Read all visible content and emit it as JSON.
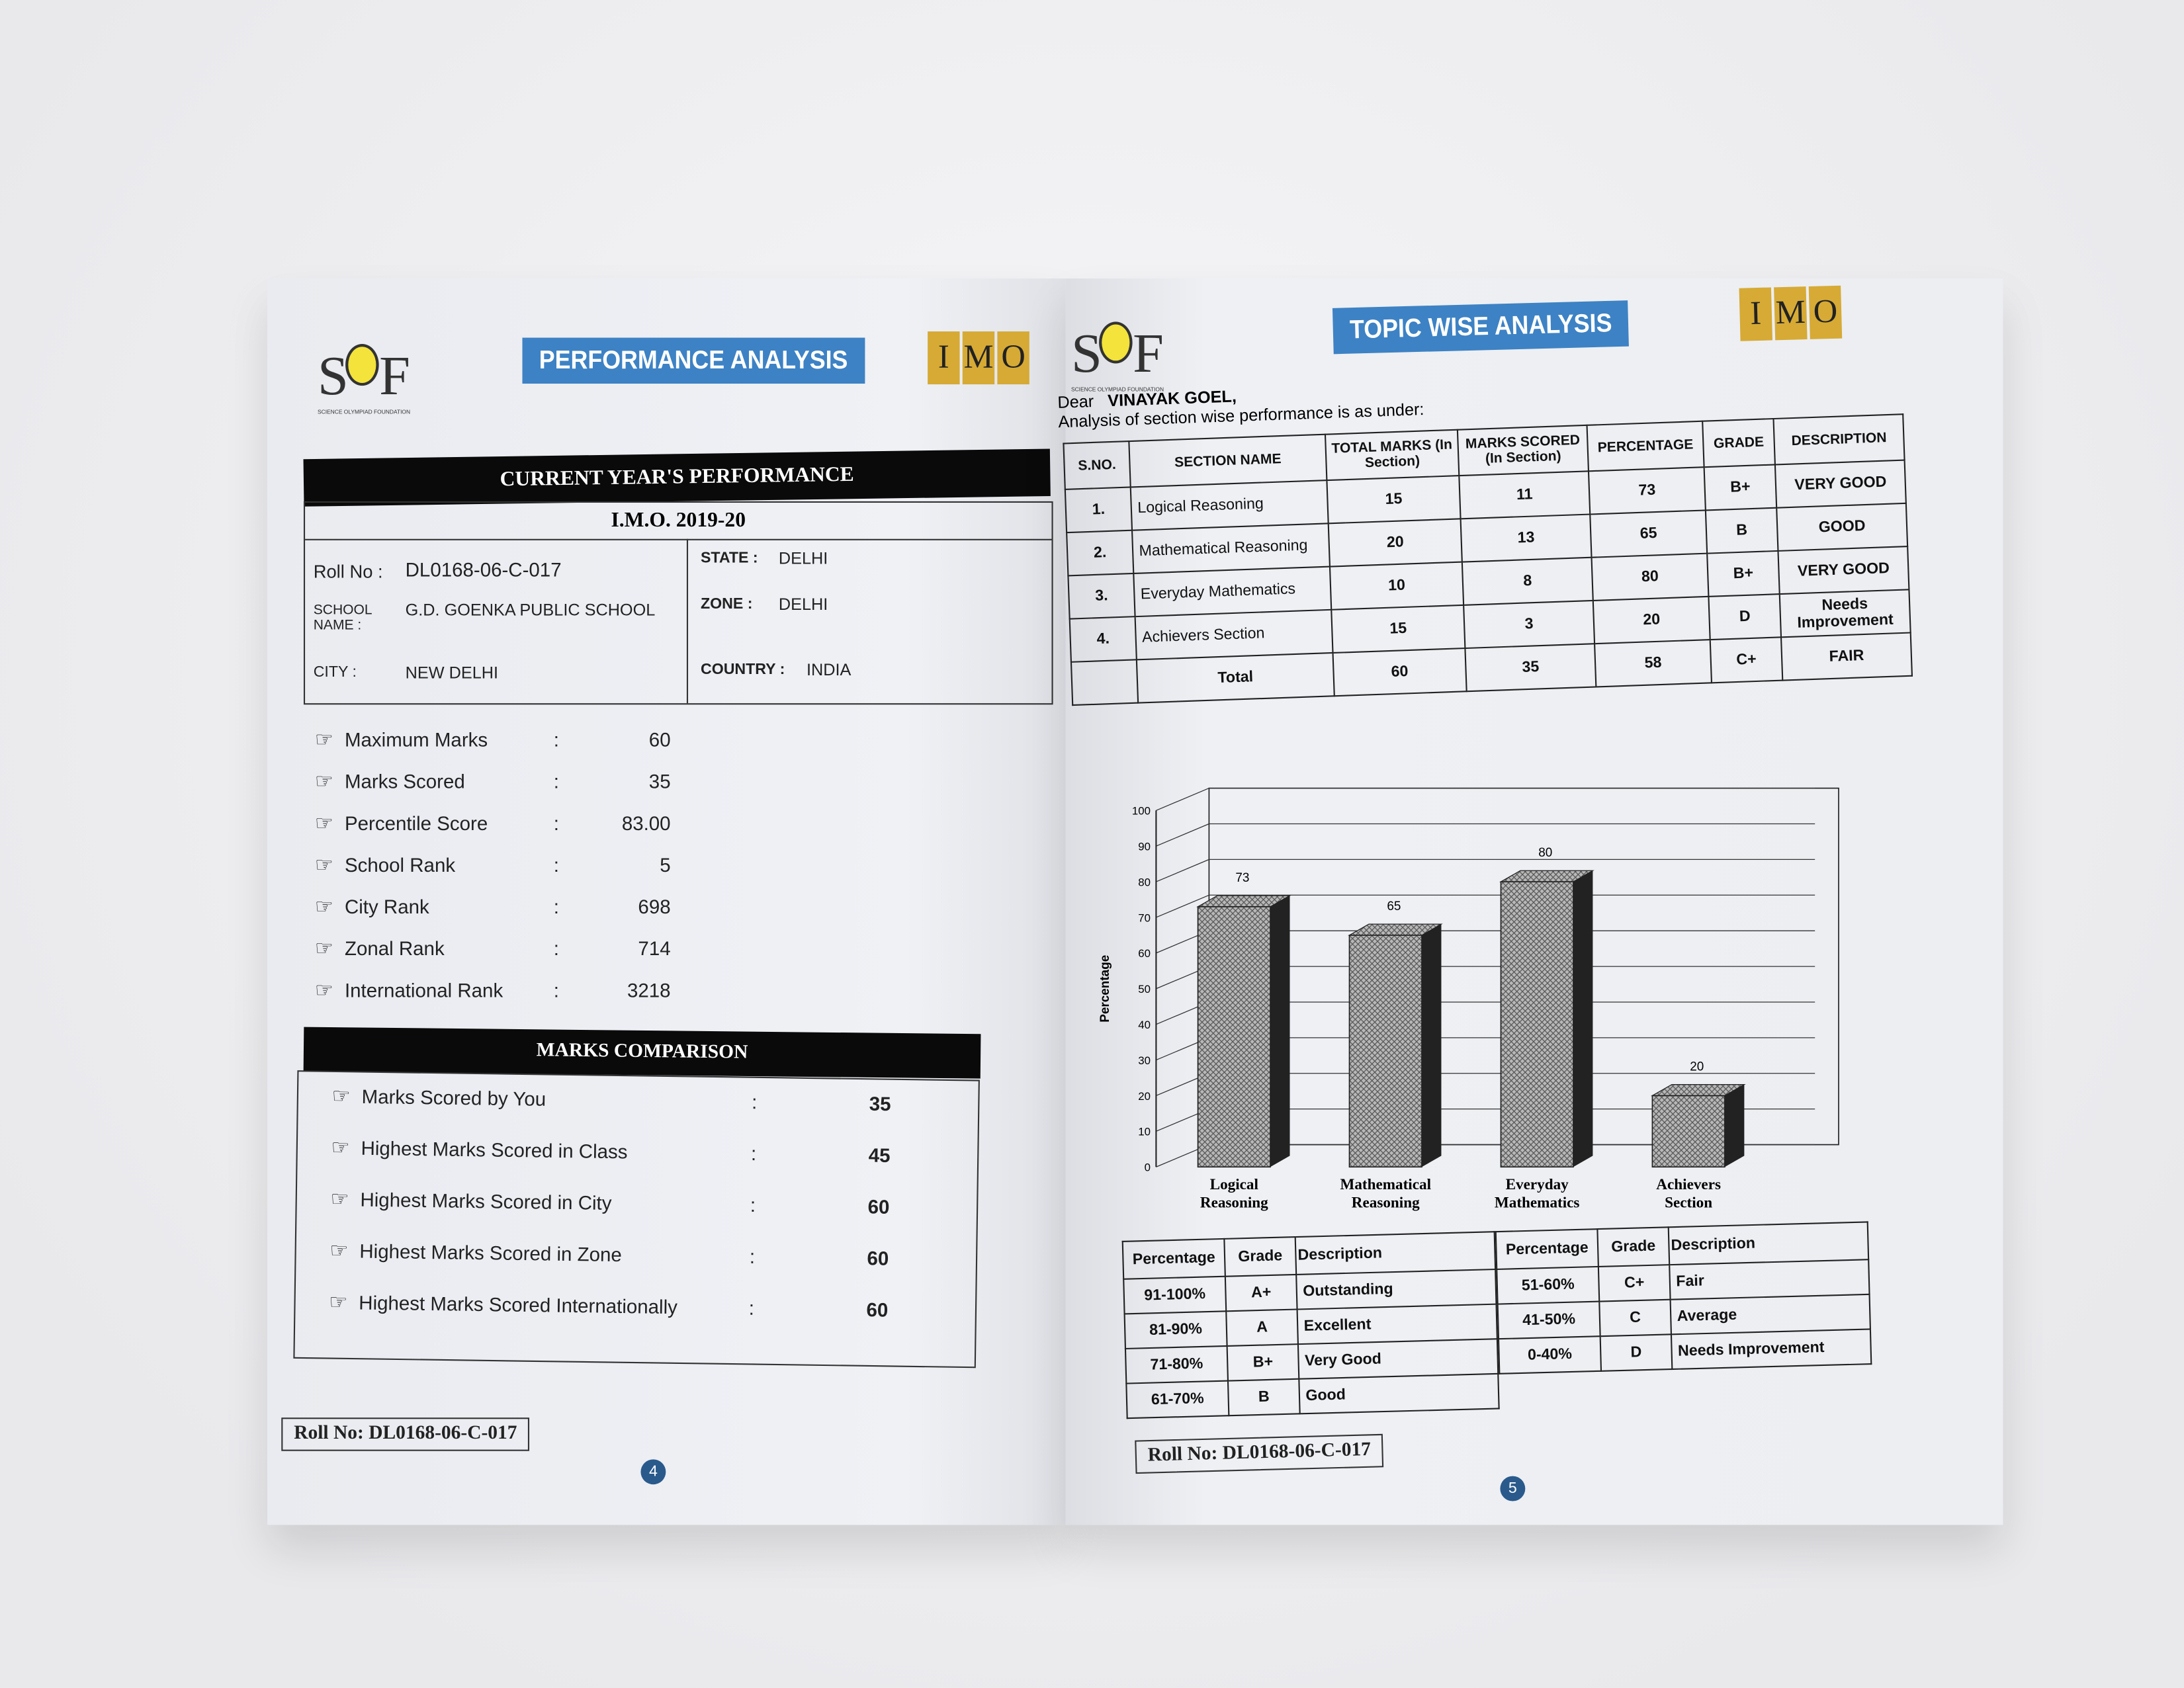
{
  "left_page": {
    "logo_left": "SOF",
    "logo_left_sub": "SCIENCE OLYMPIAD FOUNDATION",
    "banner": "PERFORMANCE ANALYSIS",
    "logo_right": [
      "I",
      "M",
      "O"
    ],
    "section_title": "CURRENT YEAR'S PERFORMANCE",
    "exam": "I.M.O. 2019-20",
    "info": {
      "roll_label": "Roll No :",
      "roll": "DL0168-06-C-017",
      "school_label": "SCHOOL NAME :",
      "school": "G.D. GOENKA PUBLIC SCHOOL",
      "city_label": "CITY :",
      "city": "NEW DELHI",
      "state_label": "STATE :",
      "state": "DELHI",
      "zone_label": "ZONE :",
      "zone": "DELHI",
      "country_label": "COUNTRY :",
      "country": "INDIA"
    },
    "stats": [
      {
        "label": "Maximum Marks",
        "value": "60"
      },
      {
        "label": "Marks Scored",
        "value": "35"
      },
      {
        "label": "Percentile Score",
        "value": "83.00"
      },
      {
        "label": "School Rank",
        "value": "5"
      },
      {
        "label": "City Rank",
        "value": "698"
      },
      {
        "label": "Zonal Rank",
        "value": "714"
      },
      {
        "label": "International Rank",
        "value": "3218"
      }
    ],
    "colon": ":",
    "comparison_title": "MARKS COMPARISON",
    "comparison": [
      {
        "label": "Marks Scored by You",
        "value": "35"
      },
      {
        "label": "Highest Marks Scored in Class",
        "value": "45"
      },
      {
        "label": "Highest Marks Scored in City",
        "value": "60"
      },
      {
        "label": "Highest Marks Scored in Zone",
        "value": "60"
      },
      {
        "label": "Highest Marks Scored Internationally",
        "value": "60"
      }
    ],
    "roll_footer": "Roll No: DL0168-06-C-017",
    "page_number": "4"
  },
  "right_page": {
    "banner": "TOPIC WISE ANALYSIS",
    "greeting": "Dear",
    "student": "VINAYAK GOEL,",
    "intro": "Analysis of section wise performance is as under:",
    "table_headers": [
      "S.NO.",
      "SECTION NAME",
      "TOTAL MARKS (In Section)",
      "MARKS SCORED (In Section)",
      "PERCENTAGE",
      "GRADE",
      "DESCRIPTION"
    ],
    "table_rows": [
      [
        "1.",
        "Logical Reasoning",
        "15",
        "11",
        "73",
        "B+",
        "VERY GOOD"
      ],
      [
        "2.",
        "Mathematical Reasoning",
        "20",
        "13",
        "65",
        "B",
        "GOOD"
      ],
      [
        "3.",
        "Everyday Mathematics",
        "10",
        "8",
        "80",
        "B+",
        "VERY GOOD"
      ],
      [
        "4.",
        "Achievers Section",
        "15",
        "3",
        "20",
        "D",
        "Needs Improvement"
      ],
      [
        "",
        "Total",
        "60",
        "35",
        "58",
        "C+",
        "FAIR"
      ]
    ],
    "grade_headers": [
      "Percentage",
      "Grade",
      "Description"
    ],
    "grades_left": [
      [
        "91-100%",
        "A+",
        "Outstanding"
      ],
      [
        "81-90%",
        "A",
        "Excellent"
      ],
      [
        "71-80%",
        "B+",
        "Very Good"
      ],
      [
        "61-70%",
        "B",
        "Good"
      ]
    ],
    "grades_right": [
      [
        "51-60%",
        "C+",
        "Fair"
      ],
      [
        "41-50%",
        "C",
        "Average"
      ],
      [
        "0-40%",
        "D",
        "Needs Improvement"
      ]
    ],
    "roll_footer": "Roll No: DL0168-06-C-017",
    "page_number": "5"
  },
  "chart_data": {
    "type": "bar",
    "categories": [
      "Logical Reasoning",
      "Mathematical Reasoning",
      "Everyday Mathematics",
      "Achievers Section"
    ],
    "values": [
      73,
      65,
      80,
      20
    ],
    "ylabel": "Percentage",
    "xlabel": "",
    "ylim": [
      0,
      100
    ],
    "yticks": [
      0,
      10,
      20,
      30,
      40,
      50,
      60,
      70,
      80,
      90,
      100
    ],
    "grid": true,
    "style": "3d-hatched",
    "bar_color": "#b8b8b8"
  },
  "colors": {
    "banner": "#3d82c4",
    "imo_gold": "#d6aa35",
    "bulb": "#f3e33a",
    "page_number": "#2a5a8c"
  }
}
